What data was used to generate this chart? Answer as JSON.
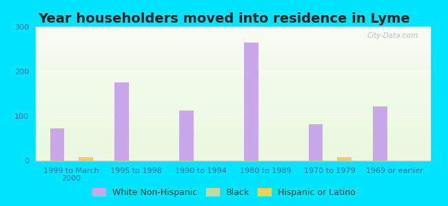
{
  "title": "Year householders moved into residence in Lyme",
  "categories": [
    "1999 to March\n2000",
    "1995 to 1998",
    "1990 to 1994",
    "1980 to 1989",
    "1970 to 1979",
    "1969 or earlier"
  ],
  "white_non_hispanic": [
    72,
    176,
    113,
    265,
    82,
    122
  ],
  "black": [
    0,
    0,
    0,
    0,
    0,
    0
  ],
  "hispanic_or_latino": [
    8,
    0,
    0,
    0,
    8,
    0
  ],
  "white_color": "#c8a8e8",
  "black_color": "#c8d8a0",
  "hispanic_color": "#f0d050",
  "background_outer": "#00e5ff",
  "ylim": [
    0,
    300
  ],
  "yticks": [
    0,
    100,
    200,
    300
  ],
  "bar_width": 0.22,
  "title_fontsize": 14,
  "tick_fontsize": 8,
  "legend_fontsize": 9,
  "watermark": "City-Data.com"
}
